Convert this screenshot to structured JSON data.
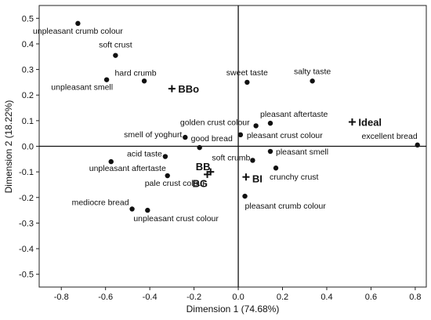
{
  "chart_data": {
    "type": "scatter",
    "title": "",
    "xlabel": "Dimension 1 (74.68%)",
    "ylabel": "Dimension 2 (18.22%)",
    "xlim": [
      -0.9,
      0.85
    ],
    "ylim": [
      -0.55,
      0.55
    ],
    "xticks": [
      "-0.8",
      "-0.6",
      "-0.4",
      "-0.2",
      "0.0",
      "0.2",
      "0.4",
      "0.6",
      "0.8"
    ],
    "yticks": [
      "0.5",
      "0.4",
      "0.3",
      "0.2",
      "0.1",
      "0.0",
      "-0.1",
      "-0.2",
      "-0.3",
      "-0.4",
      "-0.5"
    ],
    "reference_lines": {
      "x": 0,
      "y": 0
    },
    "grid": false,
    "attributes": [
      {
        "label": "unpleasant crumb colour",
        "x": -0.725,
        "y": 0.48
      },
      {
        "label": "soft crust",
        "x": -0.555,
        "y": 0.355
      },
      {
        "label": "hard crumb",
        "x": -0.425,
        "y": 0.255
      },
      {
        "label": "unpleasant smell",
        "x": -0.595,
        "y": 0.26
      },
      {
        "label": "sweet taste",
        "x": 0.04,
        "y": 0.25
      },
      {
        "label": "salty taste",
        "x": 0.335,
        "y": 0.255
      },
      {
        "label": "pleasant aftertaste",
        "x": 0.145,
        "y": 0.09
      },
      {
        "label": "golden crust colour",
        "x": 0.08,
        "y": 0.08
      },
      {
        "label": "pleasant crust colour",
        "x": 0.01,
        "y": 0.045
      },
      {
        "label": "excellent bread",
        "x": 0.81,
        "y": 0.005
      },
      {
        "label": "smell of yoghurt",
        "x": -0.24,
        "y": 0.035
      },
      {
        "label": "good bread",
        "x": -0.175,
        "y": -0.005
      },
      {
        "label": "acid taste",
        "x": -0.33,
        "y": -0.04
      },
      {
        "label": "soft crumb",
        "x": 0.065,
        "y": -0.055
      },
      {
        "label": "pleasant smell",
        "x": 0.145,
        "y": -0.02
      },
      {
        "label": "unpleasant aftertaste",
        "x": -0.575,
        "y": -0.06
      },
      {
        "label": "crunchy crust",
        "x": 0.17,
        "y": -0.085
      },
      {
        "label": "pale crust colour",
        "x": -0.32,
        "y": -0.115
      },
      {
        "label": "pleasant crumb colour",
        "x": 0.03,
        "y": -0.195
      },
      {
        "label": "mediocre bread",
        "x": -0.48,
        "y": -0.245
      },
      {
        "label": "unpleasant crust colour",
        "x": -0.41,
        "y": -0.25
      }
    ],
    "samples": [
      {
        "label": "BBo",
        "x": -0.3,
        "y": 0.225
      },
      {
        "label": "Ideal",
        "x": 0.515,
        "y": 0.095
      },
      {
        "label": "BB",
        "x": -0.125,
        "y": -0.1
      },
      {
        "label": "BG",
        "x": -0.14,
        "y": -0.11
      },
      {
        "label": "BI",
        "x": 0.035,
        "y": -0.12
      }
    ]
  }
}
